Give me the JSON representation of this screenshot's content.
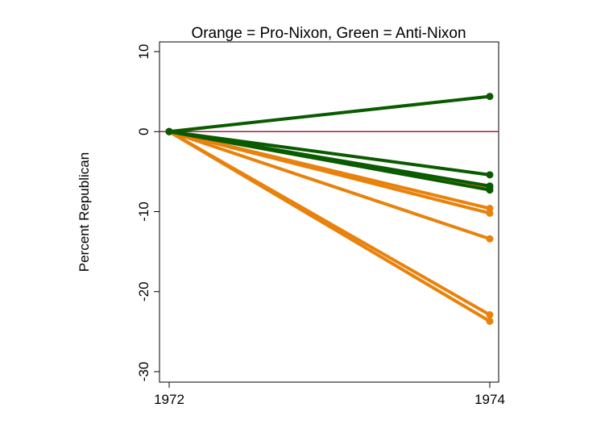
{
  "chart_data": {
    "type": "line",
    "title": "Orange = Pro-Nixon, Green = Anti-Nixon",
    "xlabel": "",
    "ylabel": "Percent Republican",
    "x": [
      1972,
      1974
    ],
    "x_ticks": [
      "1972",
      "1974"
    ],
    "y_ticks": [
      "10",
      "0",
      "-10",
      "-20",
      "-30"
    ],
    "xlim": [
      1972,
      1974
    ],
    "ylim": [
      -30,
      10
    ],
    "reference_line": {
      "y": 0,
      "color": "#a0203c"
    },
    "grid": false,
    "colors": {
      "pro": "#e8820c",
      "anti": "#0a5a00"
    },
    "series": [
      {
        "group": "anti",
        "values": [
          0,
          4.4
        ]
      },
      {
        "group": "anti",
        "values": [
          0,
          -5.4
        ]
      },
      {
        "group": "anti",
        "values": [
          0,
          -6.8
        ]
      },
      {
        "group": "anti",
        "values": [
          0,
          -7.3
        ]
      },
      {
        "group": "pro",
        "values": [
          0,
          -6.9
        ]
      },
      {
        "group": "pro",
        "values": [
          0,
          -7.1
        ]
      },
      {
        "group": "pro",
        "values": [
          0,
          -9.6
        ]
      },
      {
        "group": "pro",
        "values": [
          0,
          -10.2
        ]
      },
      {
        "group": "pro",
        "values": [
          0,
          -13.4
        ]
      },
      {
        "group": "pro",
        "values": [
          0,
          -22.9
        ]
      },
      {
        "group": "pro",
        "values": [
          0,
          -23.7
        ]
      }
    ]
  }
}
